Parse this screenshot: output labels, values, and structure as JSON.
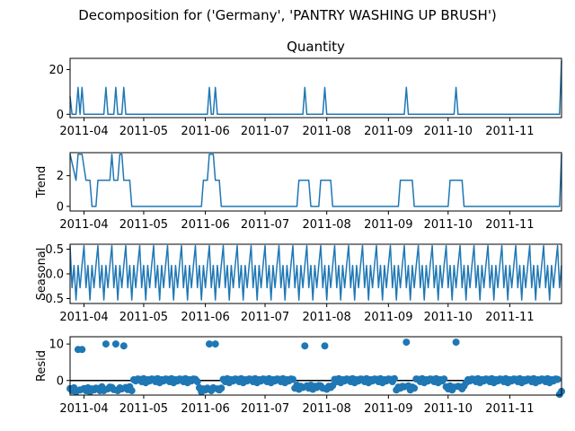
{
  "suptitle": "Decomposition for ('Germany', 'PANTRY WASHING UP BRUSH')",
  "colors": {
    "line": "#1f77b4",
    "axis": "#000000",
    "background": "#ffffff"
  },
  "chart_data": [
    {
      "type": "line",
      "panel": "observed",
      "title": "Quantity",
      "ylabel": "",
      "x_range": [
        "2011-03-25",
        "2011-11-27"
      ],
      "ylim": [
        -1.5,
        25
      ],
      "yticks": [
        0,
        20
      ],
      "xticks": [
        "2011-04",
        "2011-05",
        "2011-06",
        "2011-07",
        "2011-08",
        "2011-09",
        "2011-10",
        "2011-11"
      ],
      "spikes": [
        {
          "date": "2011-03-25",
          "value": 8
        },
        {
          "date": "2011-03-29",
          "value": 12
        },
        {
          "date": "2011-03-31",
          "value": 12
        },
        {
          "date": "2011-04-12",
          "value": 12
        },
        {
          "date": "2011-04-17",
          "value": 12
        },
        {
          "date": "2011-04-21",
          "value": 12
        },
        {
          "date": "2011-06-03",
          "value": 12
        },
        {
          "date": "2011-06-06",
          "value": 12
        },
        {
          "date": "2011-07-21",
          "value": 12
        },
        {
          "date": "2011-07-31",
          "value": 12
        },
        {
          "date": "2011-09-10",
          "value": 12
        },
        {
          "date": "2011-10-05",
          "value": 12
        },
        {
          "date": "2011-11-27",
          "value": 24
        }
      ]
    },
    {
      "type": "line",
      "panel": "trend",
      "title": "",
      "ylabel": "Trend",
      "x_range": [
        "2011-03-25",
        "2011-11-27"
      ],
      "ylim": [
        -0.3,
        3.5
      ],
      "yticks": [
        0,
        2
      ],
      "xticks": [
        "2011-04",
        "2011-05",
        "2011-06",
        "2011-07",
        "2011-08",
        "2011-09",
        "2011-10",
        "2011-11"
      ],
      "points": [
        [
          "2011-03-25",
          3.4
        ],
        [
          "2011-03-28",
          1.7
        ],
        [
          "2011-03-29",
          3.4
        ],
        [
          "2011-03-31",
          3.4
        ],
        [
          "2011-04-02",
          1.7
        ],
        [
          "2011-04-04",
          1.7
        ],
        [
          "2011-04-05",
          0
        ],
        [
          "2011-04-07",
          0
        ],
        [
          "2011-04-08",
          1.7
        ],
        [
          "2011-04-14",
          1.7
        ],
        [
          "2011-04-15",
          3.4
        ],
        [
          "2011-04-16",
          1.7
        ],
        [
          "2011-04-18",
          1.7
        ],
        [
          "2011-04-19",
          3.4
        ],
        [
          "2011-04-20",
          3.4
        ],
        [
          "2011-04-21",
          1.7
        ],
        [
          "2011-04-24",
          1.7
        ],
        [
          "2011-04-25",
          0
        ],
        [
          "2011-05-30",
          0
        ],
        [
          "2011-05-31",
          1.7
        ],
        [
          "2011-06-02",
          1.7
        ],
        [
          "2011-06-03",
          3.4
        ],
        [
          "2011-06-05",
          3.4
        ],
        [
          "2011-06-06",
          1.7
        ],
        [
          "2011-06-08",
          1.7
        ],
        [
          "2011-06-09",
          0
        ],
        [
          "2011-07-17",
          0
        ],
        [
          "2011-07-18",
          1.7
        ],
        [
          "2011-07-23",
          1.7
        ],
        [
          "2011-07-24",
          0
        ],
        [
          "2011-07-28",
          0
        ],
        [
          "2011-07-29",
          1.7
        ],
        [
          "2011-08-03",
          1.7
        ],
        [
          "2011-08-04",
          0
        ],
        [
          "2011-09-06",
          0
        ],
        [
          "2011-09-07",
          1.7
        ],
        [
          "2011-09-13",
          1.7
        ],
        [
          "2011-09-14",
          0
        ],
        [
          "2011-10-01",
          0
        ],
        [
          "2011-10-02",
          1.7
        ],
        [
          "2011-10-08",
          1.7
        ],
        [
          "2011-10-09",
          0
        ],
        [
          "2011-11-26",
          0
        ],
        [
          "2011-11-27",
          3.4
        ]
      ]
    },
    {
      "type": "line",
      "panel": "seasonal",
      "title": "",
      "ylabel": "Seasonal",
      "x_range": [
        "2011-03-25",
        "2011-11-27"
      ],
      "ylim": [
        -0.6,
        0.6
      ],
      "yticks": [
        -0.5,
        0.0,
        0.5
      ],
      "xticks": [
        "2011-04",
        "2011-05",
        "2011-06",
        "2011-07",
        "2011-08",
        "2011-09",
        "2011-10",
        "2011-11"
      ],
      "period_days": 7,
      "pattern": [
        0.57,
        -0.28,
        0.17,
        -0.53,
        0.17,
        -0.28,
        0.17
      ]
    },
    {
      "type": "scatter",
      "panel": "resid",
      "title": "",
      "ylabel": "Resid",
      "x_range": [
        "2011-03-25",
        "2011-11-27"
      ],
      "ylim": [
        -4,
        12
      ],
      "yticks": [
        0,
        10
      ],
      "xticks": [
        "2011-04",
        "2011-05",
        "2011-06",
        "2011-07",
        "2011-08",
        "2011-09",
        "2011-10",
        "2011-11"
      ],
      "outliers": [
        {
          "date": "2011-03-29",
          "value": 8.5
        },
        {
          "date": "2011-03-31",
          "value": 8.5
        },
        {
          "date": "2011-04-12",
          "value": 10
        },
        {
          "date": "2011-04-17",
          "value": 10
        },
        {
          "date": "2011-04-21",
          "value": 9.5
        },
        {
          "date": "2011-06-03",
          "value": 10
        },
        {
          "date": "2011-06-06",
          "value": 10
        },
        {
          "date": "2011-07-21",
          "value": 9.5
        },
        {
          "date": "2011-07-31",
          "value": 9.5
        },
        {
          "date": "2011-09-10",
          "value": 10.5
        },
        {
          "date": "2011-10-05",
          "value": 10.5
        }
      ],
      "baseline_pattern": [
        0.3,
        -0.3,
        0.5,
        -0.6,
        0.2,
        -0.1,
        0.4
      ],
      "low_runs": [
        [
          "2011-03-25",
          "2011-04-09",
          -2.5
        ],
        [
          "2011-04-10",
          "2011-04-25",
          -2.2
        ],
        [
          "2011-05-29",
          "2011-06-09",
          -2.5
        ],
        [
          "2011-07-16",
          "2011-08-04",
          -1.8
        ],
        [
          "2011-09-05",
          "2011-09-14",
          -2
        ],
        [
          "2011-09-30",
          "2011-10-09",
          -2
        ],
        [
          "2011-11-26",
          "2011-11-27",
          -3.5
        ]
      ]
    }
  ]
}
